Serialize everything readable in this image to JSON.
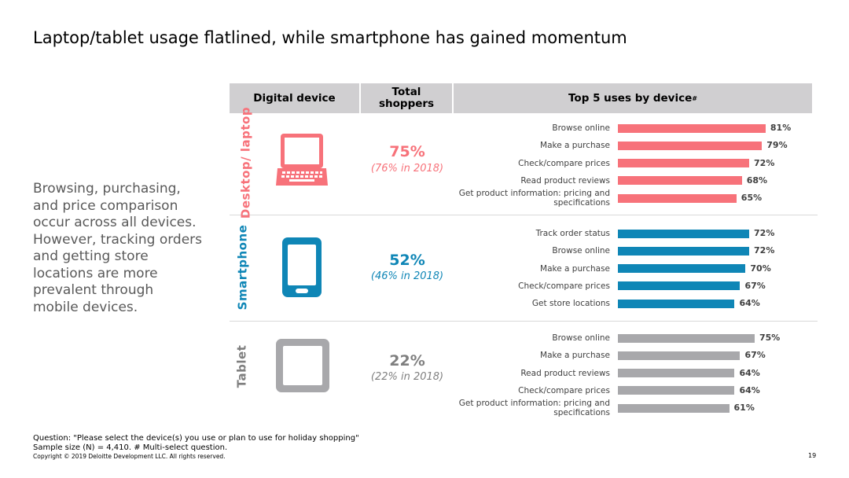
{
  "title": "Laptop/tablet usage flatlined, while smartphone has gained momentum",
  "side_text": "Browsing, purchasing, and price comparison occur across all devices. However, tracking orders and getting store locations are more prevalent through mobile devices.",
  "header": {
    "device": "Digital device",
    "shoppers": "Total shoppers",
    "uses": "Top 5 uses by device",
    "uses_mark": "#"
  },
  "colors": {
    "desktop": "#f7727a",
    "smartphone": "#0f86b6",
    "tablet": "#a8a8ab",
    "header_bg": "#d0cfd1"
  },
  "chart_data": {
    "type": "bar",
    "groups": [
      {
        "device": "Desktop/ laptop",
        "icon": "laptop-icon",
        "shoppers": "75%",
        "shoppers_prior": "(76% in 2018)",
        "color": "#f7727a",
        "categories": [
          "Browse online",
          "Make a purchase",
          "Check/compare prices",
          "Read product reviews",
          "Get product information: pricing and specifications"
        ],
        "values": [
          81,
          79,
          72,
          68,
          65
        ],
        "labels": [
          "81%",
          "79%",
          "72%",
          "68%",
          "65%"
        ]
      },
      {
        "device": "Smartphone",
        "icon": "smartphone-icon",
        "shoppers": "52%",
        "shoppers_prior": "(46% in 2018)",
        "color": "#0f86b6",
        "categories": [
          "Track order status",
          "Browse online",
          "Make a purchase",
          "Check/compare prices",
          "Get store locations"
        ],
        "values": [
          72,
          72,
          70,
          67,
          64
        ],
        "labels": [
          "72%",
          "72%",
          "70%",
          "67%",
          "64%"
        ]
      },
      {
        "device": "Tablet",
        "icon": "tablet-icon",
        "shoppers": "22%",
        "shoppers_prior": "(22% in 2018)",
        "color": "#a8a8ab",
        "categories": [
          "Browse online",
          "Make a purchase",
          "Read product reviews",
          "Check/compare prices",
          "Get product information: pricing and specifications"
        ],
        "values": [
          75,
          67,
          64,
          64,
          61
        ],
        "labels": [
          "75%",
          "67%",
          "64%",
          "64%",
          "61%"
        ]
      }
    ]
  },
  "footer": {
    "question": "Question: \"Please select the device(s) you use or plan to use for holiday shopping\"",
    "sample": "Sample size (N) = 4,410. # Multi-select question.",
    "copyright": "Copyright © 2019 Deloitte Development LLC. All rights reserved.",
    "page": "19"
  }
}
